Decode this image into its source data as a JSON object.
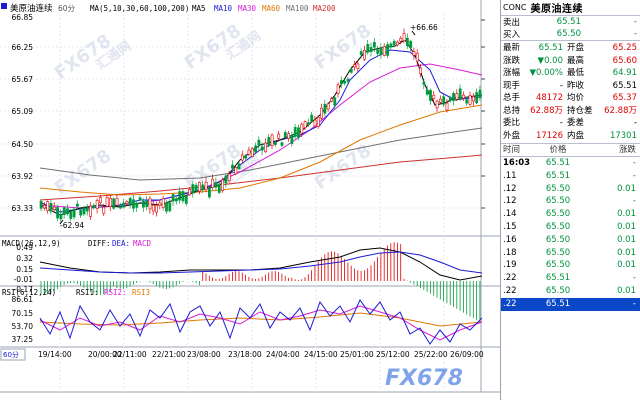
{
  "chart_header": {
    "symbol": "美原油连续",
    "period": "60分",
    "ma_label": "MA(5,10,30,60,100,200)",
    "ma_items": [
      {
        "label": "MA5",
        "color": "#000000"
      },
      {
        "label": "MA10",
        "color": "#1a1ad8"
      },
      {
        "label": "MA30",
        "color": "#d81ad8"
      },
      {
        "label": "MA60",
        "color": "#e07800"
      },
      {
        "label": "MA100",
        "color": "#707070"
      },
      {
        "label": "MA200",
        "color": "#d03030"
      }
    ]
  },
  "price_axis": [
    "66.85",
    "66.25",
    "65.67",
    "65.09",
    "64.50",
    "63.92",
    "63.33"
  ],
  "annotations": {
    "high": "66.66",
    "low": "62.94"
  },
  "macd": {
    "label": "MACD(26,12,9)",
    "diff": "DIFF:",
    "dea": "DEA:",
    "macd": "MACD",
    "axis": [
      "0.49",
      "0.32",
      "0.15",
      "-0.01",
      "-0.17"
    ]
  },
  "rsi": {
    "label": "RSI(6,12,24)",
    "rsi1": "RSI1:",
    "rsi2": "RSI2:",
    "rsi3": "RSI3",
    "axis": [
      "86.61",
      "70.15",
      "53.70",
      "37.25"
    ]
  },
  "period_tab": "60分",
  "time_axis": [
    "19/14:00",
    "20/00:00",
    "22/11:00",
    "22/21:00",
    "23/08:00",
    "23/18:00",
    "24/04:00",
    "24/15:00",
    "25/01:00",
    "25/12:00",
    "25/22:00",
    "26/09:00"
  ],
  "watermark": {
    "logo": "FX678",
    "cn": "汇通网"
  },
  "quote": {
    "code": "CONC",
    "name": "美原油连续",
    "sell": {
      "label": "卖出",
      "price": "65.51",
      "vol": "-"
    },
    "buy": {
      "label": "买入",
      "price": "65.50",
      "vol": "-"
    },
    "stats": [
      {
        "k1": "最新",
        "v1": "65.51",
        "c1": "grn",
        "k2": "开盘",
        "v2": "65.25",
        "c2": "red"
      },
      {
        "k1": "涨跌",
        "v1": "▼0.00",
        "c1": "grn",
        "k2": "最高",
        "v2": "65.60",
        "c2": "red"
      },
      {
        "k1": "涨幅",
        "v1": "▼0.00%",
        "c1": "grn",
        "k2": "最低",
        "v2": "64.91",
        "c2": "grn"
      },
      {
        "k1": "现手",
        "v1": "-",
        "c1": "blk",
        "k2": "昨收",
        "v2": "65.51",
        "c2": "blk"
      },
      {
        "k1": "总手",
        "v1": "48172",
        "c1": "red",
        "k2": "均价",
        "v2": "65.37",
        "c2": "red"
      },
      {
        "k1": "总持",
        "v1": "62.88万",
        "c1": "red",
        "k2": "持仓差",
        "v2": "62.88万",
        "c2": "red"
      },
      {
        "k1": "委比",
        "v1": "-",
        "c1": "blk",
        "k2": "委差",
        "v2": "-",
        "c2": "blk"
      },
      {
        "k1": "外盘",
        "v1": "17126",
        "c1": "red",
        "k2": "内盘",
        "v2": "17301",
        "c2": "grn"
      }
    ],
    "ticks_header": {
      "time": "时间",
      "price": "价格",
      "change": "涨跌"
    },
    "ticks": [
      {
        "time": "16:03",
        "price": "65.51",
        "change": "-"
      },
      {
        "time": ".11",
        "price": "65.51",
        "change": "-"
      },
      {
        "time": ".12",
        "price": "65.50",
        "change": "0.01"
      },
      {
        "time": ".12",
        "price": "65.50",
        "change": "-"
      },
      {
        "time": ".14",
        "price": "65.50",
        "change": "0.01"
      },
      {
        "time": ".15",
        "price": "65.50",
        "change": "0.01"
      },
      {
        "time": ".16",
        "price": "65.50",
        "change": "0.01"
      },
      {
        "time": ".18",
        "price": "65.50",
        "change": "0.01"
      },
      {
        "time": ".19",
        "price": "65.50",
        "change": "0.01"
      },
      {
        "time": ".22",
        "price": "65.51",
        "change": "-"
      },
      {
        "time": ".22",
        "price": "65.50",
        "change": "0.01"
      },
      {
        "time": ".22",
        "price": "65.51",
        "change": "-"
      }
    ]
  }
}
